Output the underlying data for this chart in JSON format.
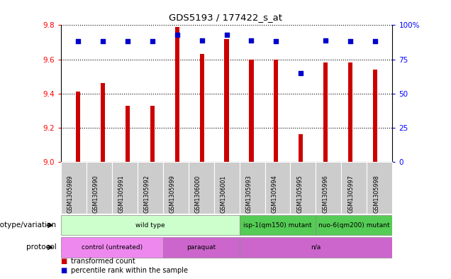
{
  "title": "GDS5193 / 177422_s_at",
  "samples": [
    "GSM1305989",
    "GSM1305990",
    "GSM1305991",
    "GSM1305992",
    "GSM1305999",
    "GSM1306000",
    "GSM1306001",
    "GSM1305993",
    "GSM1305994",
    "GSM1305995",
    "GSM1305996",
    "GSM1305997",
    "GSM1305998"
  ],
  "transformed_counts": [
    9.41,
    9.46,
    9.33,
    9.33,
    9.79,
    9.63,
    9.72,
    9.6,
    9.6,
    9.16,
    9.58,
    9.58,
    9.54
  ],
  "percentile_ranks": [
    88,
    88,
    88,
    88,
    93,
    89,
    93,
    89,
    88,
    65,
    89,
    88,
    88
  ],
  "ylim_left": [
    9.0,
    9.8
  ],
  "ylim_right": [
    0,
    100
  ],
  "yticks_left": [
    9.0,
    9.2,
    9.4,
    9.6,
    9.8
  ],
  "yticks_right": [
    0,
    25,
    50,
    75,
    100
  ],
  "grid_values": [
    9.2,
    9.4,
    9.6
  ],
  "bar_color": "#cc0000",
  "dot_color": "#0000cc",
  "genotype_row": {
    "label": "genotype/variation",
    "groups": [
      {
        "text": "wild type",
        "start": 0,
        "end": 6,
        "color": "#ccffcc"
      },
      {
        "text": "isp-1(qm150) mutant",
        "start": 7,
        "end": 9,
        "color": "#55cc55"
      },
      {
        "text": "nuo-6(qm200) mutant",
        "start": 10,
        "end": 12,
        "color": "#55cc55"
      }
    ]
  },
  "protocol_row": {
    "label": "protocol",
    "groups": [
      {
        "text": "control (untreated)",
        "start": 0,
        "end": 3,
        "color": "#ee88ee"
      },
      {
        "text": "paraquat",
        "start": 4,
        "end": 6,
        "color": "#cc66cc"
      },
      {
        "text": "n/a",
        "start": 7,
        "end": 12,
        "color": "#cc66cc"
      }
    ]
  },
  "legend_items": [
    {
      "label": "transformed count",
      "color": "#cc0000"
    },
    {
      "label": "percentile rank within the sample",
      "color": "#0000cc"
    }
  ]
}
